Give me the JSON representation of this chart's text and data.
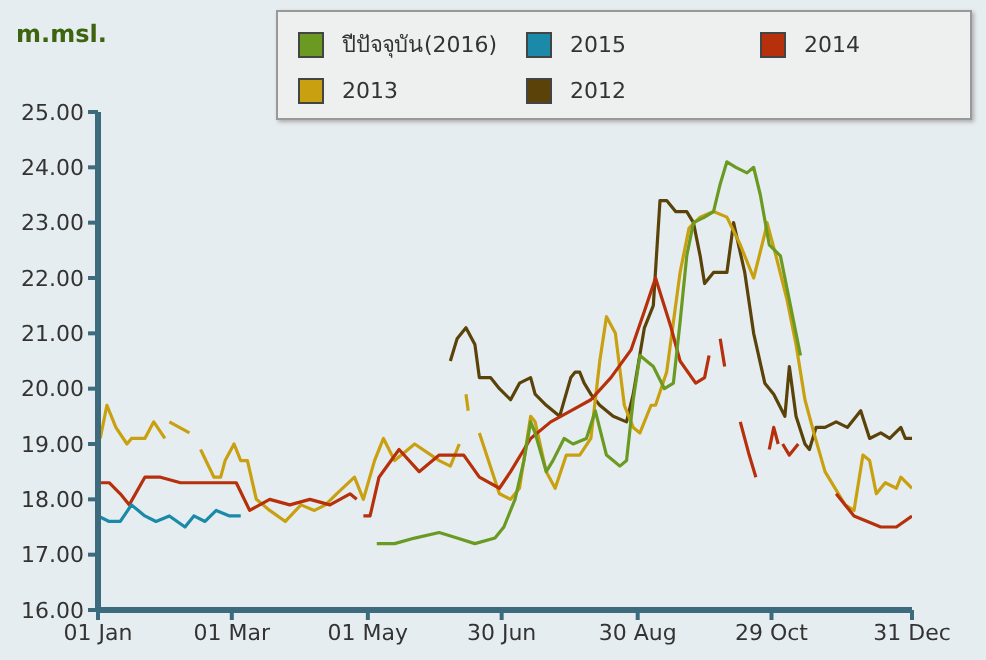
{
  "chart_data": {
    "type": "line",
    "ylabel": "m.msl.",
    "xlim": [
      "--01-01",
      "--12-31"
    ],
    "xticks": [
      {
        "value": "--01-01",
        "label": "01 Jan"
      },
      {
        "value": "--03-01",
        "label": "01 Mar"
      },
      {
        "value": "--05-01",
        "label": "01 May"
      },
      {
        "value": "--06-30",
        "label": "30 Jun"
      },
      {
        "value": "--08-30",
        "label": "30 Aug"
      },
      {
        "value": "--10-29",
        "label": "29 Oct"
      },
      {
        "value": "--12-31",
        "label": "31 Dec"
      }
    ],
    "ylim": [
      16,
      25
    ],
    "yticks": [
      {
        "value": 16,
        "label": "16.00"
      },
      {
        "value": 17,
        "label": "17.00"
      },
      {
        "value": 18,
        "label": "18.00"
      },
      {
        "value": 19,
        "label": "19.00"
      },
      {
        "value": 20,
        "label": "20.00"
      },
      {
        "value": 21,
        "label": "21.00"
      },
      {
        "value": 22,
        "label": "22.00"
      },
      {
        "value": 23,
        "label": "23.00"
      },
      {
        "value": 24,
        "label": "24.00"
      },
      {
        "value": 25,
        "label": "25.00"
      }
    ],
    "grid": false,
    "legend": "top",
    "marker": "none",
    "line_style": "solid",
    "series": [
      {
        "name": "ปีปัจจุบัน(2016)",
        "color": "#6b9a22",
        "x": [
          "--05-05",
          "--05-13",
          "--05-22",
          "--06-02",
          "--06-10",
          "--06-18",
          "--06-27",
          "--07-01",
          "--07-06",
          "--07-10",
          "--07-13",
          "--07-15",
          "--07-20",
          "--07-23",
          "--07-28",
          "--08-01",
          "--08-07",
          "--08-11",
          "--08-16",
          "--08-19",
          "--08-22",
          "--08-25",
          "--08-28",
          "--08-31",
          "--09-06",
          "--09-11",
          "--09-15",
          "--09-18",
          "--09-21",
          "--09-24",
          "--09-29",
          "--10-03",
          "--10-06",
          "--10-09",
          "--10-13",
          "--10-18",
          "--10-21",
          "--10-24",
          "--10-28",
          "--11-02",
          "--11-06",
          "--11-11"
        ],
        "values": [
          17.2,
          17.2,
          17.3,
          17.4,
          17.3,
          17.2,
          17.3,
          17.5,
          18.0,
          18.7,
          19.4,
          19.2,
          18.5,
          18.7,
          19.1,
          19.0,
          19.1,
          19.6,
          18.8,
          18.7,
          18.6,
          18.7,
          19.8,
          20.6,
          20.4,
          20.0,
          20.1,
          21.2,
          22.4,
          23.0,
          23.1,
          23.2,
          23.7,
          24.1,
          24.0,
          23.9,
          24.0,
          23.5,
          22.6,
          22.4,
          21.6,
          20.6
        ]
      },
      {
        "name": "2015",
        "color": "#1a8aa8",
        "x": [
          "--01-01",
          "--01-06",
          "--01-11",
          "--01-16",
          "--01-22",
          "--01-27",
          "--02-02",
          "--02-09",
          "--02-13",
          "--02-18",
          "--02-23",
          "--02-29",
          "--03-05"
        ],
        "values": [
          17.7,
          17.6,
          17.6,
          17.9,
          17.7,
          17.6,
          17.7,
          17.5,
          17.7,
          17.6,
          17.8,
          17.7,
          17.7
        ]
      },
      {
        "name": "2014",
        "color": "#b5300b",
        "x": [
          "--01-01",
          "--01-06",
          "--01-11",
          "--01-15",
          "--01-22",
          "--01-29",
          "--02-07",
          "--02-16",
          "--02-25",
          "--03-03",
          "--03-09",
          "--03-18",
          "--03-27",
          "--04-05",
          "--04-14",
          "--04-23",
          "--04-26",
          "--04-27",
          "--04-29",
          "--05-02",
          "--05-06",
          "--05-15",
          "--05-24",
          "--06-02",
          "--06-13",
          "--06-20",
          "--06-29",
          "--07-04",
          "--07-13",
          "--07-22",
          "--07-31",
          "--08-09",
          "--08-18",
          "--08-27",
          "--09-02",
          "--09-07",
          "--09-14",
          "--09-18",
          "--09-25",
          "--09-29",
          "--10-01",
          "--10-03",
          "--10-06",
          "--10-08",
          "--10-12",
          "--10-15",
          "--10-19",
          "--10-22",
          "--10-25",
          "--10-28",
          "--10-30",
          "--11-01",
          "--11-02",
          "--11-03",
          "--11-06",
          "--11-10",
          "--11-20",
          "--11-27",
          "--12-05",
          "--12-17",
          "--12-24",
          "--12-31"
        ],
        "values": [
          18.3,
          18.3,
          18.1,
          17.9,
          18.4,
          18.4,
          18.3,
          18.3,
          18.3,
          18.3,
          17.8,
          18.0,
          17.9,
          18.0,
          17.9,
          18.1,
          18.0,
          null,
          17.7,
          17.7,
          18.4,
          18.9,
          18.5,
          18.8,
          18.8,
          18.4,
          18.2,
          18.5,
          19.1,
          19.4,
          19.6,
          19.8,
          20.2,
          20.7,
          21.4,
          22.0,
          21.1,
          20.5,
          20.1,
          20.2,
          20.6,
          null,
          20.9,
          20.4,
          null,
          19.4,
          18.8,
          18.4,
          null,
          18.9,
          19.3,
          19.0,
          null,
          19.0,
          18.8,
          19.0,
          null,
          18.1,
          17.7,
          17.5,
          17.5,
          17.7
        ]
      },
      {
        "name": "2013",
        "color": "#c8a010",
        "x": [
          "--01-02",
          "--01-05",
          "--01-09",
          "--01-14",
          "--01-16",
          "--01-22",
          "--01-26",
          "--01-31",
          "--02-01",
          "--02-02",
          "--02-11",
          "--02-14",
          "--02-16",
          "--02-22",
          "--02-25",
          "--02-27",
          "--03-02",
          "--03-05",
          "--03-08",
          "--03-12",
          "--03-18",
          "--03-25",
          "--04-01",
          "--04-07",
          "--04-12",
          "--04-17",
          "--04-25",
          "--04-29",
          "--05-04",
          "--05-08",
          "--05-13",
          "--05-22",
          "--06-02",
          "--06-07",
          "--06-11",
          "--06-12",
          "--06-14",
          "--06-15",
          "--06-16",
          "--06-20",
          "--06-29",
          "--07-04",
          "--07-08",
          "--07-13",
          "--07-15",
          "--07-20",
          "--07-24",
          "--07-29",
          "--08-04",
          "--08-09",
          "--08-13",
          "--08-16",
          "--08-20",
          "--08-24",
          "--08-28",
          "--08-31",
          "--09-05",
          "--09-07",
          "--09-12",
          "--09-18",
          "--09-22",
          "--09-27",
          "--10-03",
          "--10-09",
          "--10-15",
          "--10-21",
          "--10-26",
          "--10-27",
          "--10-31",
          "--11-05",
          "--11-09",
          "--11-13",
          "--11-17",
          "--11-22",
          "--12-01",
          "--12-05",
          "--12-09",
          "--12-12",
          "--12-15",
          "--12-19",
          "--12-24",
          "--12-26",
          "--12-31"
        ],
        "values": [
          19.1,
          19.7,
          19.3,
          19.0,
          19.1,
          19.1,
          19.4,
          19.1,
          null,
          19.4,
          19.2,
          null,
          18.9,
          18.4,
          18.4,
          18.7,
          19.0,
          18.7,
          18.7,
          18.0,
          17.8,
          17.6,
          17.9,
          17.8,
          17.9,
          18.1,
          18.4,
          18.0,
          18.7,
          19.1,
          18.7,
          19.0,
          18.7,
          18.6,
          19.0,
          null,
          19.9,
          19.6,
          null,
          19.2,
          18.1,
          18.0,
          18.2,
          19.5,
          19.4,
          18.5,
          18.2,
          18.8,
          18.8,
          19.1,
          20.5,
          21.3,
          21.0,
          19.7,
          19.3,
          19.2,
          19.7,
          19.7,
          20.3,
          22.1,
          22.9,
          23.1,
          23.2,
          23.1,
          22.6,
          22.0,
          22.8,
          23.0,
          22.4,
          21.6,
          20.8,
          19.8,
          19.2,
          18.5,
          17.9,
          17.8,
          18.8,
          18.7,
          18.1,
          18.3,
          18.2,
          18.4,
          18.2
        ]
      },
      {
        "name": "2012",
        "color": "#5a4208",
        "x": [
          "--06-07",
          "--06-10",
          "--06-14",
          "--06-18",
          "--06-20",
          "--06-25",
          "--06-29",
          "--07-04",
          "--07-08",
          "--07-13",
          "--07-15",
          "--07-20",
          "--07-26",
          "--07-31",
          "--08-02",
          "--08-04",
          "--08-06",
          "--08-09",
          "--08-13",
          "--08-19",
          "--08-25",
          "--08-28",
          "--09-02",
          "--09-06",
          "--09-09",
          "--09-12",
          "--09-16",
          "--09-21",
          "--09-24",
          "--09-27",
          "--09-29",
          "--10-03",
          "--10-09",
          "--10-12",
          "--10-17",
          "--10-21",
          "--10-26",
          "--10-30",
          "--11-04",
          "--11-06",
          "--11-09",
          "--11-13",
          "--11-15",
          "--11-18",
          "--11-22",
          "--11-27",
          "--12-02",
          "--12-08",
          "--12-12",
          "--12-17",
          "--12-21",
          "--12-26",
          "--12-28",
          "--12-31"
        ],
        "values": [
          20.5,
          20.9,
          21.1,
          20.8,
          20.2,
          20.2,
          20.0,
          19.8,
          20.1,
          20.2,
          19.9,
          19.7,
          19.5,
          20.2,
          20.3,
          20.3,
          20.1,
          19.9,
          19.7,
          19.5,
          19.4,
          19.9,
          21.1,
          21.5,
          23.4,
          23.4,
          23.2,
          23.2,
          23.0,
          22.4,
          21.9,
          22.1,
          22.1,
          23.0,
          22.1,
          21.0,
          20.1,
          19.9,
          19.5,
          20.4,
          19.5,
          19.0,
          18.9,
          19.3,
          19.3,
          19.4,
          19.3,
          19.6,
          19.1,
          19.2,
          19.1,
          19.3,
          19.1,
          19.1
        ]
      }
    ]
  }
}
